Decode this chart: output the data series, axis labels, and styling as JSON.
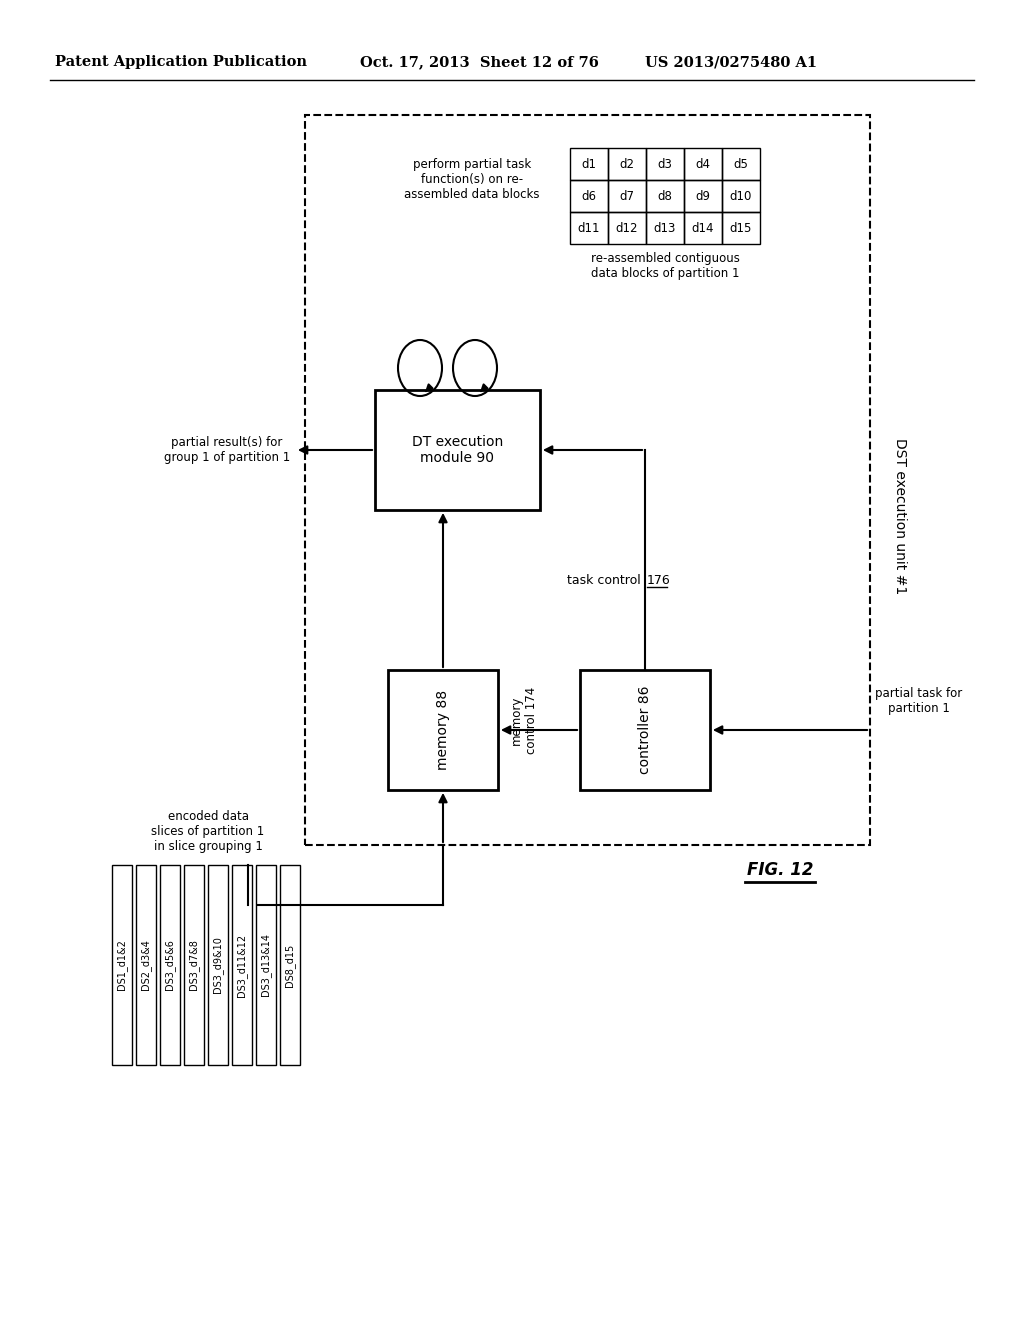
{
  "title_left": "Patent Application Publication",
  "title_mid": "Oct. 17, 2013  Sheet 12 of 76",
  "title_right": "US 2013/0275480 A1",
  "fig_label": "FIG. 12",
  "ds_slices": [
    "DS1_d1&2",
    "DS2_d3&4",
    "DS3_d5&6",
    "DS3_d7&8",
    "DS3_d9&10",
    "DS3_d11&12",
    "DS3_d13&14",
    "DS8_d15"
  ],
  "ds_label": "encoded data\nslices of partition 1\nin slice grouping 1",
  "grid_cols": [
    [
      "d1",
      "d6",
      "d11"
    ],
    [
      "d2",
      "d7",
      "d12"
    ],
    [
      "d3",
      "d8",
      "d13"
    ],
    [
      "d4",
      "d9",
      "d14"
    ],
    [
      "d5",
      "d10",
      "d15"
    ]
  ],
  "grid_label": "re-assembled contiguous\ndata blocks of partition 1",
  "perform_label": "perform partial task\nfunction(s) on re-\nassembled data blocks",
  "dt_label": "DT execution\nmodule 90",
  "memory_label": "memory 88",
  "mem_ctrl_label": "memory\ncontrol 174",
  "controller_label": "controller 86",
  "task_ctrl_label": "task control 176",
  "dst_label": "DST execution unit #1",
  "partial_result_label": "partial result(s) for\ngroup 1 of partition 1",
  "partial_task_label": "partial task for\npartition 1",
  "bg_color": "#ffffff"
}
